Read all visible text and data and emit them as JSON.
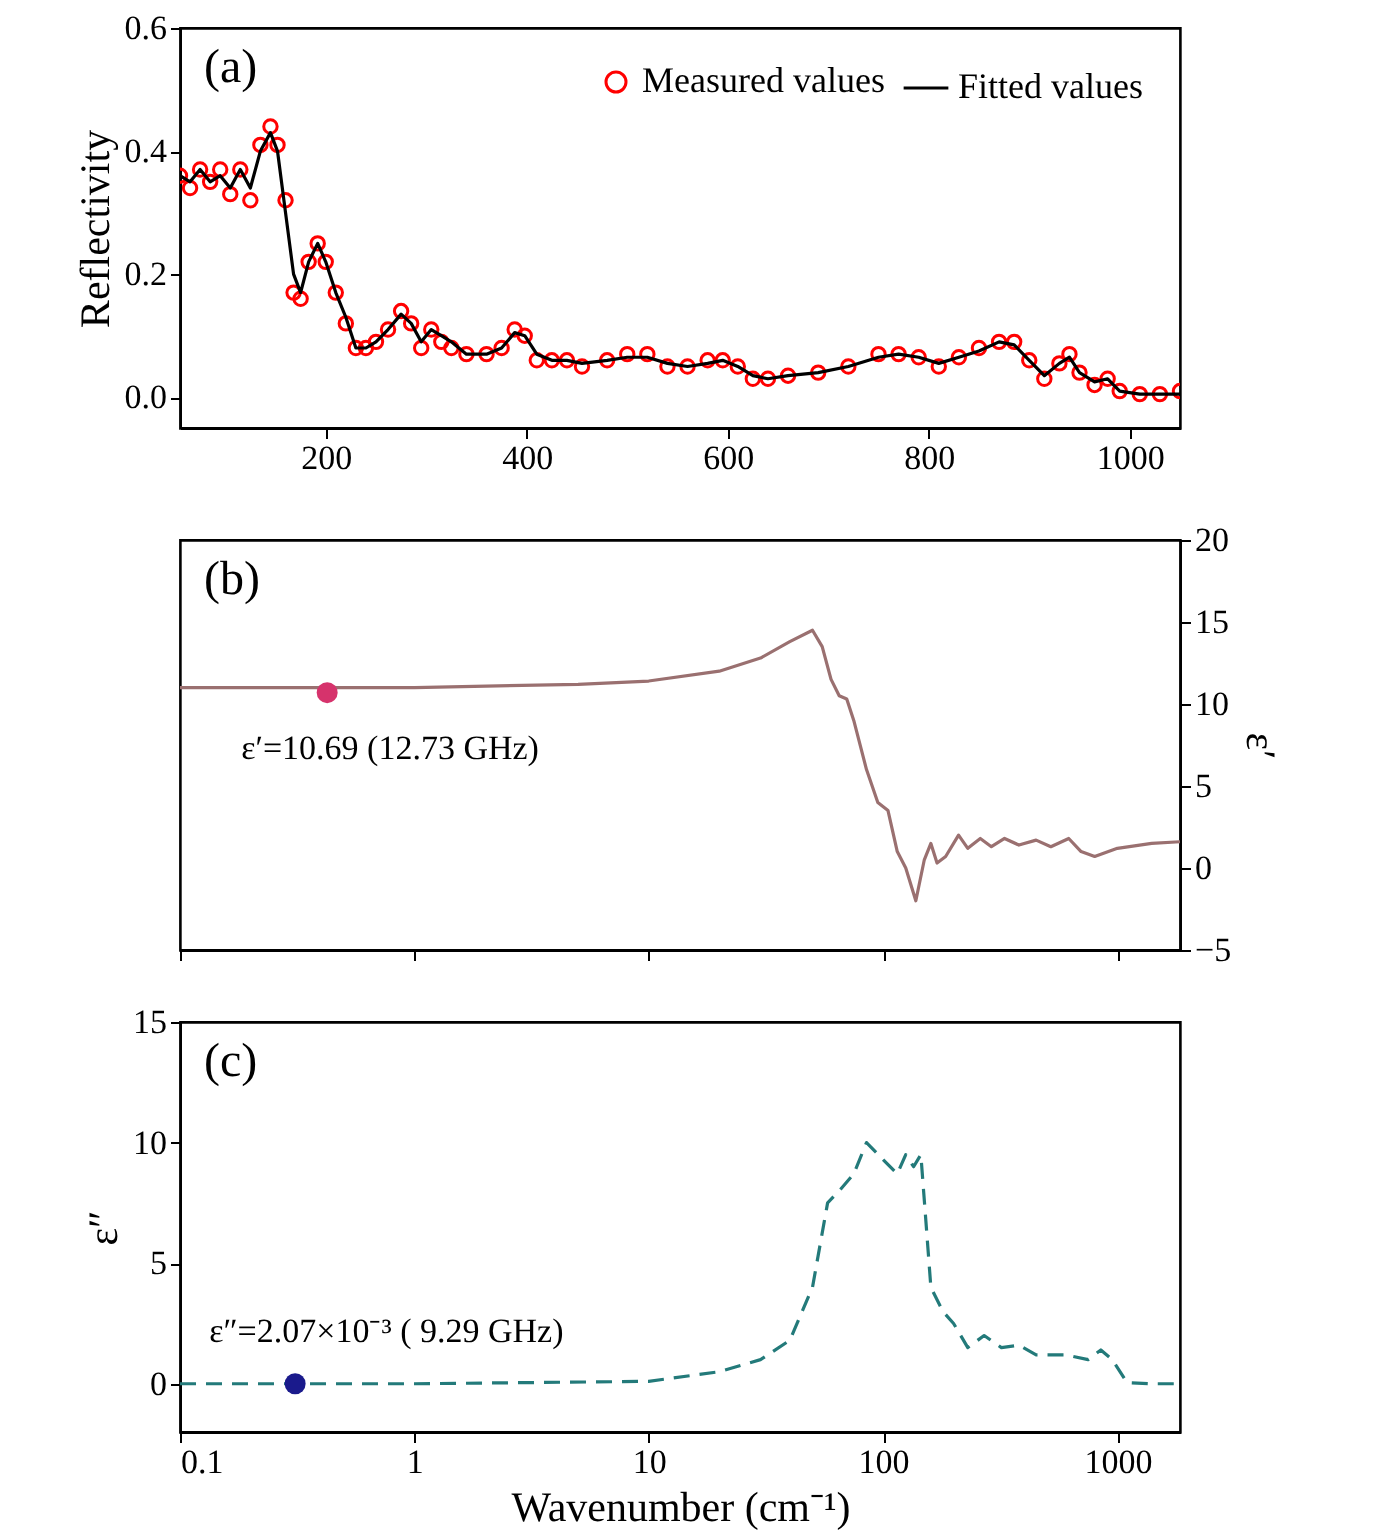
{
  "chart_data": [
    {
      "type": "line",
      "ylabel": "Reflectivity",
      "xlim": [
        55,
        1050
      ],
      "xticks": [
        200,
        400,
        600,
        800,
        1000
      ],
      "ylim": [
        -0.05,
        0.6
      ],
      "yticks": [
        {
          "value": 0,
          "label": "0.0"
        },
        0.2,
        0.4,
        0.6
      ],
      "legend": "top right",
      "annotations": [
        "(a)"
      ],
      "x": [
        55,
        65,
        75,
        85,
        95,
        105,
        115,
        125,
        135,
        145,
        152,
        160,
        168,
        175,
        183,
        192,
        200,
        210,
        220,
        230,
        240,
        250,
        262,
        275,
        285,
        295,
        305,
        315,
        325,
        340,
        360,
        375,
        388,
        398,
        410,
        425,
        440,
        455,
        480,
        500,
        520,
        540,
        560,
        580,
        595,
        610,
        625,
        640,
        660,
        690,
        720,
        750,
        770,
        790,
        810,
        830,
        850,
        870,
        885,
        900,
        915,
        930,
        940,
        950,
        965,
        978,
        990,
        1010,
        1030,
        1050
      ],
      "series": [
        {
          "name": "Measured values",
          "type": "scatter",
          "marker": "circle",
          "color": "#ff0000",
          "values": [
            0.36,
            0.34,
            0.37,
            0.35,
            0.37,
            0.33,
            0.37,
            0.32,
            0.41,
            0.44,
            0.41,
            0.32,
            0.17,
            0.16,
            0.22,
            0.25,
            0.22,
            0.17,
            0.12,
            0.08,
            0.08,
            0.09,
            0.11,
            0.14,
            0.12,
            0.08,
            0.11,
            0.09,
            0.08,
            0.07,
            0.07,
            0.08,
            0.11,
            0.1,
            0.06,
            0.06,
            0.06,
            0.05,
            0.06,
            0.07,
            0.07,
            0.05,
            0.05,
            0.06,
            0.06,
            0.05,
            0.03,
            0.03,
            0.035,
            0.04,
            0.05,
            0.07,
            0.07,
            0.065,
            0.05,
            0.065,
            0.08,
            0.09,
            0.09,
            0.06,
            0.03,
            0.055,
            0.07,
            0.04,
            0.02,
            0.03,
            0.01,
            0.005,
            0.005,
            0.01
          ]
        },
        {
          "name": "Fitted values",
          "color": "#000000",
          "values": [
            0.36,
            0.35,
            0.37,
            0.35,
            0.36,
            0.34,
            0.37,
            0.34,
            0.4,
            0.43,
            0.4,
            0.3,
            0.2,
            0.17,
            0.22,
            0.25,
            0.22,
            0.17,
            0.13,
            0.08,
            0.08,
            0.09,
            0.11,
            0.135,
            0.12,
            0.09,
            0.11,
            0.1,
            0.09,
            0.07,
            0.07,
            0.08,
            0.105,
            0.1,
            0.07,
            0.06,
            0.06,
            0.055,
            0.06,
            0.065,
            0.065,
            0.055,
            0.05,
            0.055,
            0.06,
            0.05,
            0.035,
            0.03,
            0.035,
            0.04,
            0.05,
            0.065,
            0.07,
            0.065,
            0.055,
            0.065,
            0.075,
            0.09,
            0.085,
            0.06,
            0.035,
            0.055,
            0.065,
            0.04,
            0.025,
            0.03,
            0.01,
            0.005,
            0.005,
            0.005
          ]
        }
      ]
    },
    {
      "type": "line",
      "ylabel": "ε′",
      "log": "x",
      "xlim": [
        0.1,
        1850
      ],
      "xticks": [
        0.1,
        1,
        10,
        100,
        1000
      ],
      "ylim": [
        -5,
        20
      ],
      "yticks": [
        -5,
        0,
        5,
        10,
        15,
        20
      ],
      "tick_labels": "y",
      "annotations": [
        "(b)",
        {
          "text": "ε′=10.69 (12.73 GHz)",
          "x": 0.4246,
          "y": 10.69
        }
      ],
      "series": [
        {
          "color": "#9a7070",
          "x": [
            0.1,
            1,
            5,
            10,
            20,
            30,
            40,
            50,
            55,
            60,
            65,
            70,
            75,
            85,
            95,
            105,
            115,
            125,
            138,
            150,
            160,
            170,
            185,
            210,
            230,
            260,
            290,
            330,
            380,
            450,
            520,
            620,
            700,
            800,
            1000,
            1400,
            1850
          ],
          "values": [
            11,
            11,
            11.2,
            11.4,
            12,
            12.8,
            13.8,
            14.5,
            13.5,
            11.5,
            10.5,
            10.3,
            9,
            6,
            4,
            3.5,
            1,
            0,
            -2,
            0.5,
            1.5,
            0.3,
            0.7,
            2,
            1.2,
            1.8,
            1.3,
            1.8,
            1.4,
            1.7,
            1.3,
            1.8,
            1.0,
            0.7,
            1.2,
            1.5,
            1.6
          ]
        },
        {
          "type": "scatter",
          "marker": "circle",
          "color": "#d6336c",
          "x": [
            0.4246
          ],
          "values": [
            10.69
          ]
        }
      ]
    },
    {
      "type": "line",
      "ylabel": "ε″",
      "xlabel": "Wavenumber (cm⁻¹)",
      "log": "x",
      "xlim": [
        0.1,
        1850
      ],
      "xticks": [
        0.1,
        1,
        10,
        100,
        1000
      ],
      "ylim": [
        -2,
        15
      ],
      "yticks": [
        0,
        5,
        10,
        15
      ],
      "annotations": [
        "(c)",
        {
          "text": "ε″=2.07×10⁻³ ( 9.29 GHz)",
          "x": 0.31,
          "y": 0.00207
        }
      ],
      "series": [
        {
          "line_style": "dashed",
          "color": "#237a7a",
          "x": [
            0.1,
            1,
            10,
            20,
            30,
            40,
            50,
            58,
            65,
            75,
            85,
            100,
            115,
            125,
            135,
            145,
            160,
            180,
            200,
            230,
            270,
            320,
            380,
            450,
            600,
            750,
            850,
            950,
            1100,
            1400,
            1850
          ],
          "values": [
            0,
            0,
            0.1,
            0.5,
            1,
            1.8,
            4,
            7.5,
            8,
            8.7,
            10,
            9.3,
            8.7,
            9.5,
            9,
            9.5,
            4,
            3,
            2.5,
            1.5,
            2,
            1.5,
            1.6,
            1.2,
            1.2,
            1.0,
            1.4,
            1,
            0.05,
            0,
            0
          ]
        },
        {
          "type": "scatter",
          "marker": "circle",
          "color": "#1a1a8c",
          "x": [
            0.31
          ],
          "values": [
            0.00207
          ]
        }
      ]
    }
  ]
}
